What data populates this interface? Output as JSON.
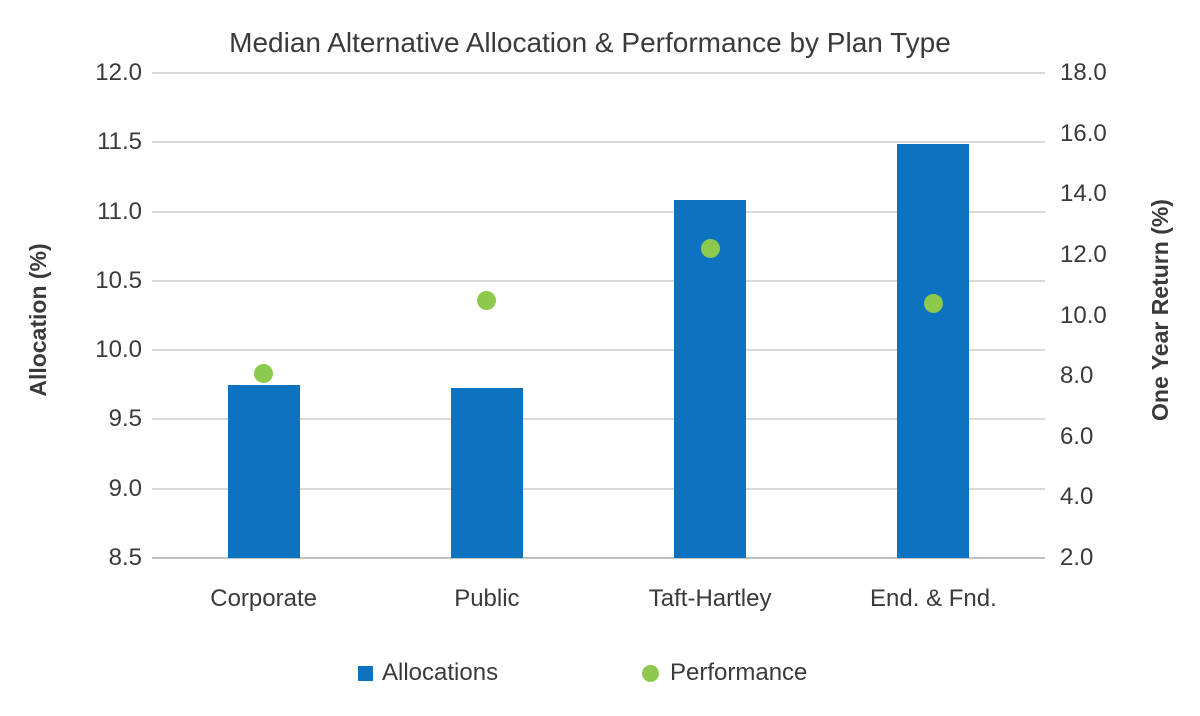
{
  "title": "Median Alternative Allocation & Performance by Plan Type",
  "chart_data": {
    "type": "bar",
    "subtype": "combo-bar-and-scatter-dots",
    "categories": [
      "Corporate",
      "Public",
      "Taft-Hartley",
      "End. & Fnd."
    ],
    "series": [
      {
        "name": "Allocations",
        "type": "bar",
        "axis": "left",
        "values": [
          9.75,
          9.73,
          11.08,
          11.49
        ]
      },
      {
        "name": "Performance",
        "type": "scatter",
        "axis": "right",
        "values": [
          8.1,
          10.5,
          12.2,
          10.4
        ]
      }
    ],
    "left_axis": {
      "title": "Allocation (%)",
      "min": 8.5,
      "max": 12.0,
      "step": 0.5,
      "ticks": [
        "12.0",
        "11.5",
        "11.0",
        "10.5",
        "10.0",
        "9.5",
        "9.0",
        "8.5"
      ]
    },
    "right_axis": {
      "title": "One Year Return (%)",
      "min": 2.0,
      "max": 18.0,
      "step": 2.0,
      "ticks": [
        "18.0",
        "16.0",
        "14.0",
        "12.0",
        "10.0",
        "8.0",
        "6.0",
        "4.0",
        "2.0"
      ]
    },
    "grid": true,
    "legend_position": "bottom"
  },
  "colors": {
    "bar": "#0d73c1",
    "dot": "#8cc94c",
    "gridline": "#d9d9d9",
    "axis_line": "#c2c2c2",
    "text": "#3a3a3a"
  }
}
